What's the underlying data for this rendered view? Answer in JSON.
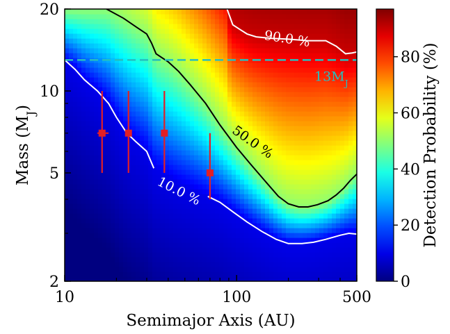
{
  "chart_data": {
    "type": "heatmap",
    "title": "",
    "xlabel": "Semimajor Axis (AU)",
    "ylabel_main": "Mass (M",
    "ylabel_sub": "J",
    "ylabel_close": ")",
    "colorbar_label": "Detection Probability (%)",
    "x_scale": "log",
    "y_scale": "log",
    "xlim": [
      10,
      500
    ],
    "ylim": [
      2,
      20
    ],
    "x_ticks": [
      {
        "value": 10,
        "label": "10"
      },
      {
        "value": 100,
        "label": "100"
      },
      {
        "value": 500,
        "label": "500"
      }
    ],
    "y_ticks": [
      {
        "value": 2,
        "label": "2"
      },
      {
        "value": 5,
        "label": "5"
      },
      {
        "value": 10,
        "label": "10"
      },
      {
        "value": 20,
        "label": "20"
      }
    ],
    "colorbar": {
      "range": [
        0,
        97
      ],
      "ticks": [
        {
          "value": 0,
          "label": "0"
        },
        {
          "value": 20,
          "label": "20"
        },
        {
          "value": 40,
          "label": "40"
        },
        {
          "value": 60,
          "label": "60"
        },
        {
          "value": 80,
          "label": "80"
        }
      ],
      "colormap": "jet"
    },
    "contours": [
      {
        "level": 10,
        "label": "10.0 %",
        "color": "#ffffff",
        "segments": [
          [
            [
              10,
              13
            ],
            [
              11.5,
              12
            ],
            [
              13,
              11
            ],
            [
              15.5,
              10
            ],
            [
              18,
              9
            ],
            [
              20,
              8
            ],
            [
              23,
              7
            ],
            [
              26,
              6.5
            ],
            [
              30,
              6
            ],
            [
              33,
              5.2
            ]
          ],
          [
            [
              68,
              4.1
            ],
            [
              80,
              3.9
            ],
            [
              95,
              3.6
            ],
            [
              115,
              3.3
            ],
            [
              140,
              3.05
            ],
            [
              170,
              2.85
            ],
            [
              200,
              2.75
            ],
            [
              240,
              2.75
            ],
            [
              280,
              2.78
            ],
            [
              330,
              2.85
            ],
            [
              400,
              2.95
            ],
            [
              450,
              3.0
            ],
            [
              500,
              2.98
            ]
          ]
        ]
      },
      {
        "level": 50,
        "label": "50.0 %",
        "color": "#000000",
        "segments": [
          [
            [
              17.5,
              20
            ],
            [
              22,
              18.5
            ],
            [
              26,
              17.2
            ],
            [
              30,
              16.2
            ],
            [
              32,
              15.0
            ],
            [
              34,
              13.7
            ],
            [
              40,
              12.8
            ],
            [
              46,
              11.8
            ],
            [
              54,
              10.5
            ],
            [
              66,
              9.0
            ],
            [
              80,
              7.5
            ],
            [
              100,
              6.2
            ],
            [
              120,
              5.4
            ],
            [
              145,
              4.7
            ],
            [
              175,
              4.1
            ],
            [
              200,
              3.85
            ],
            [
              230,
              3.75
            ],
            [
              260,
              3.75
            ],
            [
              295,
              3.82
            ],
            [
              340,
              3.95
            ],
            [
              380,
              4.15
            ],
            [
              420,
              4.4
            ],
            [
              460,
              4.7
            ],
            [
              500,
              4.95
            ]
          ]
        ]
      },
      {
        "level": 90,
        "label": "90.0 %",
        "color": "#ffffff",
        "segments": [
          [
            [
              88,
              20
            ],
            [
              95,
              17.5
            ],
            [
              105,
              16.8
            ],
            [
              115,
              16.2
            ],
            [
              130,
              15.8
            ],
            [
              160,
              15.6
            ],
            [
              200,
              15.5
            ],
            [
              260,
              15.3
            ],
            [
              330,
              15.3
            ],
            [
              380,
              14.6
            ],
            [
              430,
              13.7
            ],
            [
              470,
              13.8
            ],
            [
              500,
              13.9
            ]
          ]
        ]
      }
    ],
    "reference_line": {
      "y": 13,
      "label_main": "13M",
      "label_sub": "J",
      "color": "#26bfbf",
      "style": "dashed"
    },
    "series": [
      {
        "marker": "square",
        "color": "#e21f26",
        "points": [
          {
            "x": 16.5,
            "y": 7.0,
            "y_low": 5.0,
            "y_high": 10.0,
            "x_low": 15.5,
            "x_high": 18.0
          },
          {
            "x": 23.5,
            "y": 7.0,
            "y_low": 5.0,
            "y_high": 10.0
          },
          {
            "x": 38.0,
            "y": 7.0,
            "y_low": 5.0,
            "y_high": 10.0
          },
          {
            "x": 70.0,
            "y": 5.0,
            "y_low": 4.0,
            "y_high": 7.0
          }
        ]
      }
    ]
  }
}
